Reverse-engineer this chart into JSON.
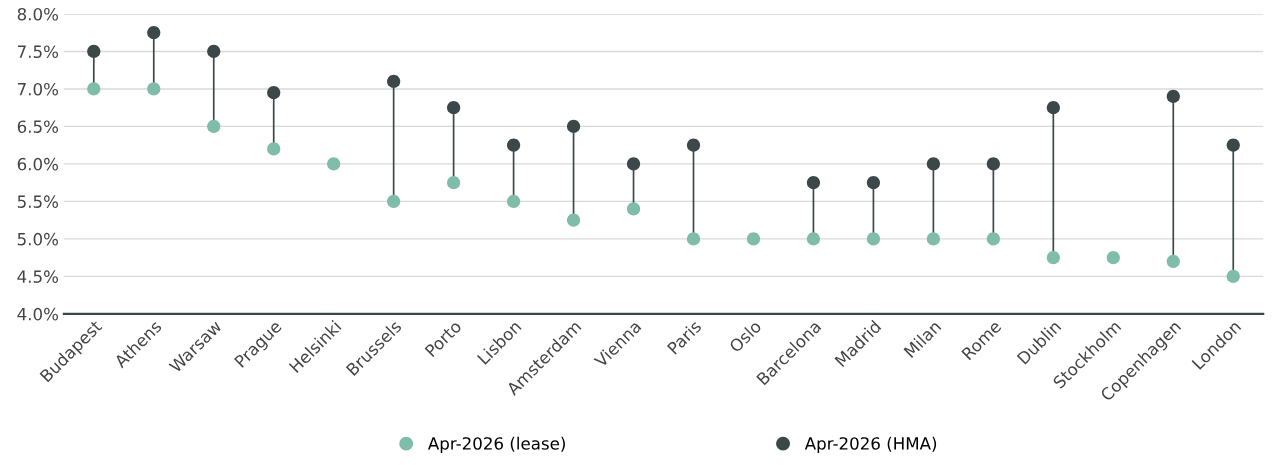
{
  "chart_data": {
    "type": "scatter",
    "categories": [
      "Budapest",
      "Athens",
      "Warsaw",
      "Prague",
      "Helsinki",
      "Brussels",
      "Porto",
      "Lisbon",
      "Amsterdam",
      "Vienna",
      "Paris",
      "Oslo",
      "Barcelona",
      "Madrid",
      "Milan",
      "Rome",
      "Dublin",
      "Stockholm",
      "Copenhagen",
      "London"
    ],
    "series": [
      {
        "name": "Apr-2026 (lease)",
        "color": "#7fbcaa",
        "values": [
          7.0,
          7.0,
          6.5,
          6.2,
          6.0,
          5.5,
          5.75,
          5.5,
          5.25,
          5.4,
          5.0,
          5.0,
          5.0,
          5.0,
          5.0,
          5.0,
          4.75,
          4.75,
          4.7,
          4.5
        ]
      },
      {
        "name": "Apr-2026 (HMA)",
        "color": "#3b4748",
        "values": [
          7.5,
          7.75,
          7.5,
          6.95,
          null,
          7.1,
          6.75,
          6.25,
          6.5,
          6.0,
          6.25,
          null,
          5.75,
          5.75,
          6.0,
          6.0,
          6.75,
          null,
          6.9,
          6.25
        ]
      }
    ],
    "ylim": [
      4.0,
      8.0
    ],
    "yticks": [
      {
        "value": 4.0,
        "label": "4.0%"
      },
      {
        "value": 4.5,
        "label": "4.5%"
      },
      {
        "value": 5.0,
        "label": "5.0%"
      },
      {
        "value": 5.5,
        "label": "5.5%"
      },
      {
        "value": 6.0,
        "label": "6.0%"
      },
      {
        "value": 6.5,
        "label": "6.5%"
      },
      {
        "value": 7.0,
        "label": "7.0%"
      },
      {
        "value": 7.5,
        "label": "7.5%"
      },
      {
        "value": 8.0,
        "label": "8.0%"
      }
    ],
    "grid": "y",
    "legend": "bottom",
    "marker": "circle"
  }
}
